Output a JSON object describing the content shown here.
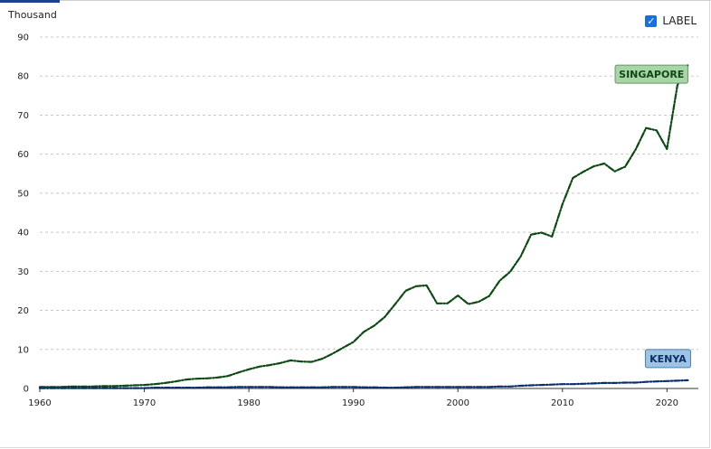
{
  "header": {
    "unit_label": "Thousand",
    "label_toggle": {
      "text": "LABEL",
      "checked": true,
      "check_glyph": "✓"
    }
  },
  "chart_data": {
    "type": "line",
    "y_unit": "Thousand",
    "xlim": [
      1960,
      2023
    ],
    "ylim": [
      0,
      90
    ],
    "x_ticks": [
      1960,
      1970,
      1980,
      1990,
      2000,
      2010,
      2020
    ],
    "y_ticks": [
      0,
      10,
      20,
      30,
      40,
      50,
      60,
      70,
      80,
      90
    ],
    "grid": "horizontal dashed",
    "x": [
      1960,
      1961,
      1962,
      1963,
      1964,
      1965,
      1966,
      1967,
      1968,
      1969,
      1970,
      1971,
      1972,
      1973,
      1974,
      1975,
      1976,
      1977,
      1978,
      1979,
      1980,
      1981,
      1982,
      1983,
      1984,
      1985,
      1986,
      1987,
      1988,
      1989,
      1990,
      1991,
      1992,
      1993,
      1994,
      1995,
      1996,
      1997,
      1998,
      1999,
      2000,
      2001,
      2002,
      2003,
      2004,
      2005,
      2006,
      2007,
      2008,
      2009,
      2010,
      2011,
      2012,
      2013,
      2014,
      2015,
      2016,
      2017,
      2018,
      2019,
      2020,
      2021,
      2022
    ],
    "series": [
      {
        "name": "SINGAPORE",
        "color": "#0c4a12",
        "label_bg": "#a8d4a8",
        "label_border": "#5f9a5f",
        "label_text_color": "#0c4a12",
        "values": [
          0.4,
          0.4,
          0.4,
          0.5,
          0.5,
          0.5,
          0.6,
          0.6,
          0.7,
          0.8,
          0.9,
          1.1,
          1.4,
          1.8,
          2.3,
          2.5,
          2.6,
          2.8,
          3.2,
          4.1,
          4.9,
          5.6,
          6.0,
          6.5,
          7.2,
          6.9,
          6.8,
          7.6,
          8.9,
          10.4,
          11.9,
          14.5,
          16.1,
          18.3,
          21.6,
          25.0,
          26.2,
          26.4,
          21.8,
          21.8,
          23.8,
          21.6,
          22.2,
          23.7,
          27.6,
          29.9,
          33.8,
          39.4,
          39.9,
          38.9,
          47.2,
          53.9,
          55.5,
          56.9,
          57.6,
          55.6,
          56.8,
          61.2,
          66.7,
          66.1,
          61.3,
          77.7,
          82.8
        ]
      },
      {
        "name": "KENYA",
        "color": "#0b2f6b",
        "label_bg": "#9ec4e4",
        "label_border": "#4a7fb5",
        "label_text_color": "#0b2f6b",
        "values": [
          0.1,
          0.1,
          0.1,
          0.1,
          0.1,
          0.1,
          0.1,
          0.1,
          0.1,
          0.1,
          0.1,
          0.2,
          0.2,
          0.2,
          0.2,
          0.2,
          0.3,
          0.3,
          0.3,
          0.4,
          0.4,
          0.4,
          0.4,
          0.3,
          0.3,
          0.3,
          0.3,
          0.3,
          0.4,
          0.4,
          0.4,
          0.3,
          0.3,
          0.2,
          0.2,
          0.3,
          0.4,
          0.4,
          0.4,
          0.4,
          0.4,
          0.4,
          0.4,
          0.4,
          0.5,
          0.5,
          0.7,
          0.8,
          0.9,
          1.0,
          1.1,
          1.1,
          1.2,
          1.3,
          1.4,
          1.4,
          1.5,
          1.5,
          1.7,
          1.8,
          1.9,
          2.0,
          2.1
        ]
      }
    ]
  }
}
